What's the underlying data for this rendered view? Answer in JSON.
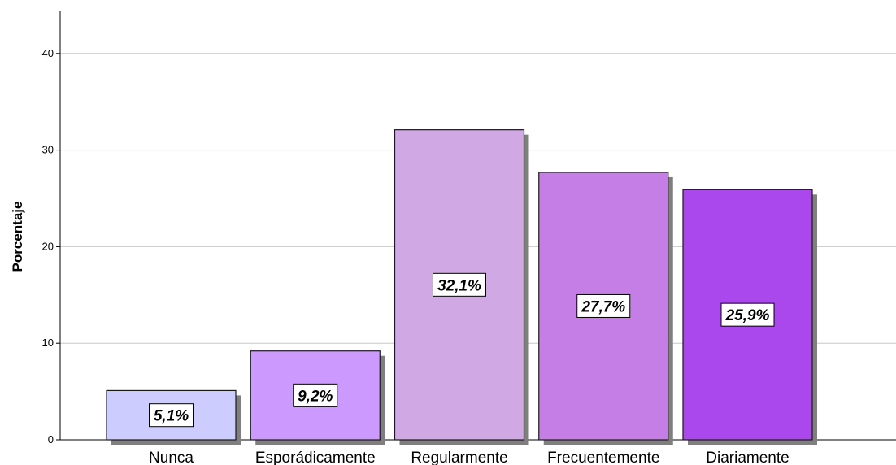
{
  "chart_data": {
    "type": "bar",
    "ylabel": "Porcentaje",
    "xlabel": "",
    "ylim": [
      0,
      45
    ],
    "yticks": [
      "0",
      "10",
      "20",
      "30",
      "40"
    ],
    "ytick_values": [
      0,
      10,
      20,
      30,
      40
    ],
    "grid": true,
    "categories": [
      "Nunca",
      "Esporádicamente",
      "Regularmente",
      "Frecuentemente",
      "Diariamente"
    ],
    "values": [
      5.1,
      9.2,
      32.1,
      27.7,
      25.9
    ],
    "data_labels": [
      "5,1%",
      "9,2%",
      "32,1%",
      "27,7%",
      "25,9%"
    ],
    "colors": [
      "#ccccff",
      "#cc99ff",
      "#cfa8e4",
      "#c47ee6",
      "#aa48ee"
    ],
    "shadow_color": "#7f7f7f"
  }
}
